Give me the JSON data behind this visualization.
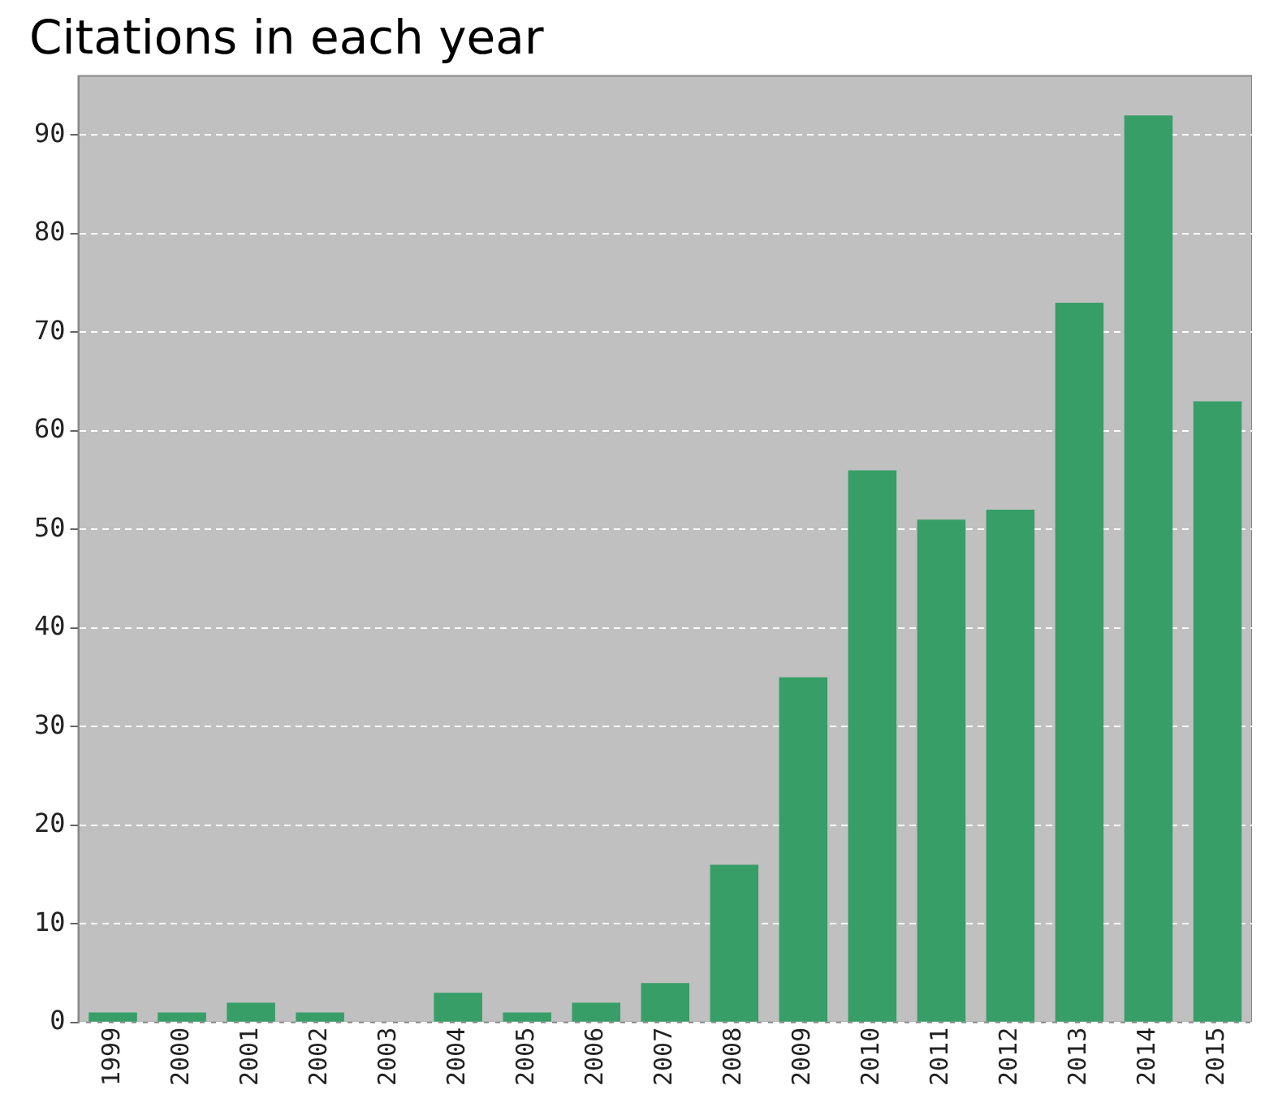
{
  "chart_data": {
    "type": "bar",
    "title": "Citations in each year",
    "categories": [
      "1999",
      "2000",
      "2001",
      "2002",
      "2003",
      "2004",
      "2005",
      "2006",
      "2007",
      "2008",
      "2009",
      "2010",
      "2011",
      "2012",
      "2013",
      "2014",
      "2015"
    ],
    "values": [
      1,
      1,
      2,
      1,
      0,
      3,
      1,
      2,
      4,
      16,
      35,
      56,
      51,
      52,
      73,
      92,
      63
    ],
    "color": "#379e67",
    "ylim": [
      0,
      96
    ],
    "yticks": [
      0,
      10,
      20,
      30,
      40,
      50,
      60,
      70,
      80,
      90
    ],
    "grid": "y"
  }
}
